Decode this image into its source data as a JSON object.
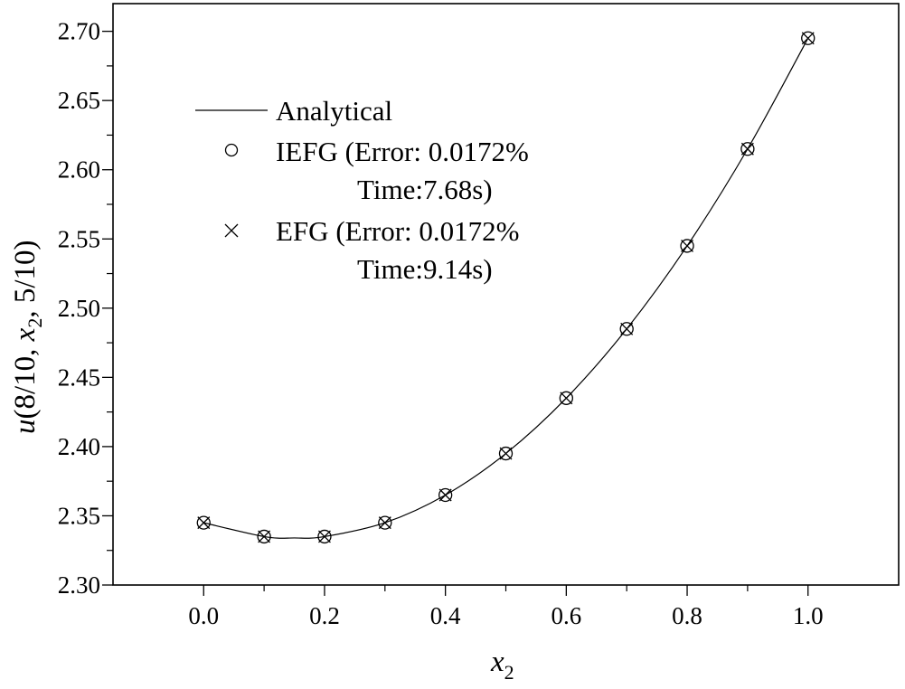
{
  "chart_data": {
    "type": "line",
    "xlabel": {
      "var": "x",
      "sub": "2"
    },
    "ylabel": {
      "fn": "u",
      "open": "(8/10, ",
      "var": "x",
      "sub": "2",
      "close": ", 5/10)"
    },
    "xlim": [
      -0.15,
      1.15
    ],
    "ylim": [
      2.3,
      2.72
    ],
    "xticks": [
      0.0,
      0.2,
      0.4,
      0.6,
      0.8,
      1.0
    ],
    "xtick_labels": [
      "0.0",
      "0.2",
      "0.4",
      "0.6",
      "0.8",
      "1.0"
    ],
    "yticks": [
      2.3,
      2.35,
      2.4,
      2.45,
      2.5,
      2.55,
      2.6,
      2.65,
      2.7
    ],
    "ytick_labels": [
      "2.30",
      "2.35",
      "2.40",
      "2.45",
      "2.50",
      "2.55",
      "2.60",
      "2.65",
      "2.70"
    ],
    "legend_position": "top-left",
    "series": [
      {
        "name": "Analytical",
        "style": "solid-line",
        "x": [
          0.0,
          0.1,
          0.15,
          0.2,
          0.3,
          0.4,
          0.5,
          0.6,
          0.7,
          0.8,
          0.9,
          1.0
        ],
        "y": [
          2.345,
          2.335,
          2.334,
          2.335,
          2.345,
          2.365,
          2.395,
          2.435,
          2.485,
          2.545,
          2.615,
          2.695
        ]
      },
      {
        "name": "IEFG",
        "legend_lines": [
          "IEFG (Error: 0.0172%",
          "Time:7.68s)"
        ],
        "marker": "circle",
        "x": [
          0.0,
          0.1,
          0.2,
          0.3,
          0.4,
          0.5,
          0.6,
          0.7,
          0.8,
          0.9,
          1.0
        ],
        "y": [
          2.345,
          2.335,
          2.335,
          2.345,
          2.365,
          2.395,
          2.435,
          2.485,
          2.545,
          2.615,
          2.695
        ]
      },
      {
        "name": "EFG",
        "legend_lines": [
          "EFG  (Error: 0.0172%",
          "Time:9.14s)"
        ],
        "marker": "cross",
        "x": [
          0.0,
          0.1,
          0.2,
          0.3,
          0.4,
          0.5,
          0.6,
          0.7,
          0.8,
          0.9,
          1.0
        ],
        "y": [
          2.345,
          2.335,
          2.335,
          2.345,
          2.365,
          2.395,
          2.435,
          2.485,
          2.545,
          2.615,
          2.695
        ]
      }
    ]
  }
}
